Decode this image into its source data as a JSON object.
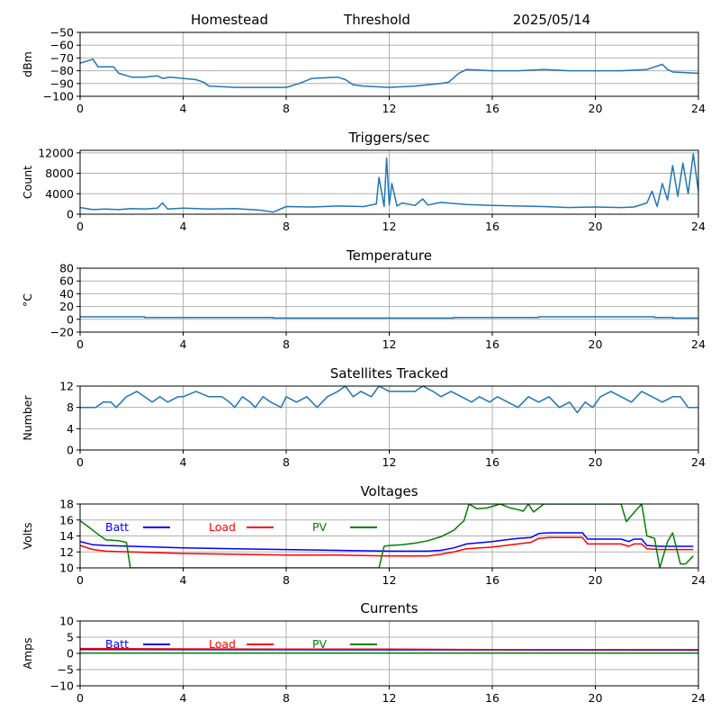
{
  "header": {
    "site": "Homestead",
    "label": "Threshold",
    "date": "2025/05/14"
  },
  "colors": {
    "series_default": "#1f77b4",
    "grid": "#b0b0b0",
    "batt": "#0000ff",
    "load": "#ff0000",
    "pv": "#008000"
  },
  "chart_data": [
    {
      "id": "signal",
      "type": "line",
      "title": "",
      "xlabel": "",
      "ylabel": "dBm",
      "xlim": [
        0,
        24
      ],
      "ylim": [
        -100,
        -50
      ],
      "xticks": [
        0,
        4,
        8,
        12,
        16,
        20,
        24
      ],
      "yticks": [
        -100,
        -90,
        -80,
        -70,
        -60,
        -50
      ],
      "grid": true,
      "series": [
        {
          "color": "#1f77b4",
          "x": [
            0,
            0.5,
            0.7,
            1.3,
            1.5,
            2.0,
            2.5,
            3.0,
            3.2,
            3.5,
            4.0,
            4.5,
            4.8,
            5.0,
            6.0,
            7.0,
            8.0,
            8.5,
            9.0,
            10.0,
            10.3,
            10.6,
            11.0,
            12.0,
            13.0,
            14.0,
            14.3,
            14.7,
            15.0,
            16.0,
            17.0,
            18.0,
            19.0,
            20.0,
            21.0,
            22.0,
            22.6,
            22.8,
            23.0,
            24.0
          ],
          "y": [
            -74,
            -71,
            -77,
            -77,
            -82,
            -85,
            -85,
            -84,
            -86,
            -85,
            -86,
            -87,
            -89,
            -92,
            -93,
            -93,
            -93,
            -90,
            -86,
            -85,
            -87,
            -91,
            -92,
            -93,
            -92,
            -90,
            -89,
            -82,
            -79,
            -80,
            -80,
            -79,
            -80,
            -80,
            -80,
            -79,
            -75,
            -79,
            -81,
            -82
          ]
        }
      ]
    },
    {
      "id": "triggers",
      "type": "line",
      "title": "Triggers/sec",
      "xlabel": "",
      "ylabel": "Count",
      "xlim": [
        0,
        24
      ],
      "ylim": [
        0,
        12500
      ],
      "xticks": [
        0,
        4,
        8,
        12,
        16,
        20,
        24
      ],
      "yticks": [
        0,
        4000,
        8000,
        12000
      ],
      "grid": true,
      "series": [
        {
          "color": "#1f77b4",
          "x": [
            0,
            0.5,
            1.0,
            1.5,
            2.0,
            2.5,
            3.0,
            3.2,
            3.4,
            4.0,
            5.0,
            6.0,
            7.0,
            7.5,
            8.0,
            9.0,
            10.0,
            11.0,
            11.5,
            11.6,
            11.8,
            11.9,
            12.0,
            12.1,
            12.3,
            12.5,
            13.0,
            13.3,
            13.5,
            14.0,
            15.0,
            16.0,
            17.0,
            18.0,
            19.0,
            20.0,
            21.0,
            21.5,
            22.0,
            22.2,
            22.4,
            22.6,
            22.8,
            23.0,
            23.2,
            23.4,
            23.6,
            23.8,
            24.0
          ],
          "y": [
            1300,
            900,
            1000,
            900,
            1100,
            1000,
            1200,
            2200,
            1000,
            1200,
            1000,
            1100,
            800,
            400,
            1500,
            1400,
            1600,
            1500,
            2000,
            7200,
            1500,
            11000,
            1800,
            6000,
            1600,
            2200,
            1700,
            3000,
            1800,
            2300,
            1900,
            1700,
            1600,
            1500,
            1300,
            1400,
            1300,
            1400,
            2200,
            4500,
            1500,
            6000,
            2800,
            9500,
            3500,
            10000,
            4000,
            11800,
            4500
          ]
        }
      ]
    },
    {
      "id": "temperature",
      "type": "line",
      "title": "Temperature",
      "xlabel": "",
      "ylabel": "°C",
      "xlim": [
        0,
        24
      ],
      "ylim": [
        -20,
        80
      ],
      "xticks": [
        0,
        4,
        8,
        12,
        16,
        20,
        24
      ],
      "yticks": [
        -20,
        0,
        20,
        40,
        60,
        80
      ],
      "grid": true,
      "series": [
        {
          "color": "#1f77b4",
          "x": [
            0,
            2.5,
            2.5,
            7.5,
            7.5,
            14.5,
            14.5,
            17.8,
            17.8,
            22.3,
            22.3,
            23.0,
            23.0,
            24.0
          ],
          "y": [
            4,
            4,
            3,
            3,
            2,
            2,
            3,
            3,
            4,
            4,
            3,
            3,
            2,
            2
          ]
        }
      ]
    },
    {
      "id": "satellites",
      "type": "line",
      "title": "Satellites Tracked",
      "xlabel": "",
      "ylabel": "Number",
      "xlim": [
        0,
        24
      ],
      "ylim": [
        0,
        12
      ],
      "xticks": [
        0,
        4,
        8,
        12,
        16,
        20,
        24
      ],
      "yticks": [
        0,
        4,
        8,
        12
      ],
      "grid": true,
      "series": [
        {
          "color": "#1f77b4",
          "x": [
            0,
            0.6,
            0.9,
            1.2,
            1.4,
            1.8,
            2.2,
            2.5,
            2.8,
            3.1,
            3.4,
            3.8,
            4.0,
            4.5,
            5.0,
            5.5,
            5.8,
            6.0,
            6.3,
            6.6,
            6.8,
            7.1,
            7.4,
            7.8,
            8.0,
            8.4,
            8.8,
            9.2,
            9.6,
            10.0,
            10.3,
            10.6,
            10.9,
            11.3,
            11.6,
            12.0,
            12.5,
            13.0,
            13.3,
            13.7,
            14.0,
            14.4,
            14.8,
            15.2,
            15.5,
            15.9,
            16.2,
            16.6,
            17.0,
            17.4,
            17.8,
            18.2,
            18.6,
            19.0,
            19.3,
            19.6,
            19.9,
            20.2,
            20.6,
            21.0,
            21.4,
            21.8,
            22.2,
            22.6,
            23.0,
            23.3,
            23.6,
            24.0
          ],
          "y": [
            8,
            8,
            9,
            9,
            8,
            10,
            11,
            10,
            9,
            10,
            9,
            10,
            10,
            11,
            10,
            10,
            9,
            8,
            10,
            9,
            8,
            10,
            9,
            8,
            10,
            9,
            10,
            8,
            10,
            11,
            12,
            10,
            11,
            10,
            12,
            11,
            11,
            11,
            12,
            11,
            10,
            11,
            10,
            9,
            10,
            9,
            10,
            9,
            8,
            10,
            9,
            10,
            8,
            9,
            7,
            9,
            8,
            10,
            11,
            10,
            9,
            11,
            10,
            9,
            10,
            10,
            8,
            8
          ]
        }
      ]
    },
    {
      "id": "voltages",
      "type": "line",
      "title": "Voltages",
      "xlabel": "",
      "ylabel": "Volts",
      "xlim": [
        0,
        24
      ],
      "ylim": [
        10,
        18
      ],
      "xticks": [
        0,
        4,
        8,
        12,
        16,
        20,
        24
      ],
      "yticks": [
        10,
        12,
        14,
        16,
        18
      ],
      "grid": true,
      "legend": "inline-top",
      "series": [
        {
          "name": "Batt",
          "color": "#0000ff",
          "x": [
            0,
            0.5,
            1.0,
            2.0,
            4.0,
            6.0,
            8.0,
            10.0,
            12.0,
            13.5,
            14.0,
            14.5,
            15.0,
            16.0,
            16.5,
            17.0,
            17.5,
            17.8,
            18.2,
            19.0,
            19.5,
            19.7,
            20.0,
            20.5,
            21.0,
            21.3,
            21.5,
            21.8,
            22.0,
            22.5,
            23.0,
            23.5,
            23.8
          ],
          "y": [
            13.3,
            12.9,
            12.8,
            12.7,
            12.5,
            12.4,
            12.3,
            12.2,
            12.1,
            12.1,
            12.2,
            12.5,
            13.0,
            13.3,
            13.5,
            13.7,
            13.8,
            14.3,
            14.4,
            14.4,
            14.4,
            13.6,
            13.6,
            13.6,
            13.6,
            13.3,
            13.6,
            13.6,
            12.8,
            12.7,
            12.7,
            12.7,
            12.7
          ]
        },
        {
          "name": "Load",
          "color": "#ff0000",
          "x": [
            0,
            0.5,
            1.0,
            2.0,
            4.0,
            6.0,
            8.0,
            10.0,
            12.0,
            13.5,
            14.0,
            14.5,
            15.0,
            16.0,
            16.5,
            17.0,
            17.5,
            17.8,
            18.2,
            19.0,
            19.5,
            19.7,
            20.0,
            20.5,
            21.0,
            21.3,
            21.5,
            21.8,
            22.0,
            22.5,
            23.0,
            23.5,
            23.8
          ],
          "y": [
            12.8,
            12.3,
            12.1,
            12.0,
            11.8,
            11.7,
            11.6,
            11.6,
            11.5,
            11.5,
            11.7,
            12.0,
            12.4,
            12.6,
            12.8,
            13.0,
            13.2,
            13.7,
            13.8,
            13.8,
            13.8,
            13.0,
            13.0,
            13.0,
            13.0,
            12.7,
            13.0,
            13.0,
            12.4,
            12.3,
            12.3,
            12.3,
            12.3
          ]
        },
        {
          "name": "PV",
          "color": "#008000",
          "x": [
            0,
            0.3,
            0.7,
            1.0,
            1.5,
            1.8,
            1.95,
            11.6,
            11.8,
            12.0,
            12.5,
            13.0,
            13.5,
            14.0,
            14.5,
            14.9,
            15.1,
            15.4,
            15.8,
            16.3,
            16.7,
            17.0,
            17.2,
            17.4,
            17.6,
            18.0,
            19.0,
            20.0,
            20.5,
            21.0,
            21.2,
            21.6,
            21.8,
            22.0,
            22.3,
            22.5,
            22.8,
            23.0,
            23.3,
            23.5,
            23.8
          ],
          "y": [
            15.9,
            15.2,
            14.2,
            13.5,
            13.4,
            13.2,
            10.0,
            10.0,
            12.7,
            12.8,
            12.9,
            13.1,
            13.4,
            13.9,
            14.7,
            15.9,
            18.0,
            17.4,
            17.5,
            18.0,
            17.5,
            17.3,
            17.1,
            18.0,
            17.0,
            18.0,
            18.0,
            18.0,
            18.0,
            18.0,
            15.8,
            17.3,
            18.0,
            14.0,
            13.7,
            10.0,
            13.3,
            14.4,
            10.5,
            10.5,
            11.5
          ]
        }
      ]
    },
    {
      "id": "currents",
      "type": "line",
      "title": "Currents",
      "xlabel": "",
      "ylabel": "Amps",
      "xlim": [
        0,
        24
      ],
      "ylim": [
        -10,
        10
      ],
      "xticks": [
        0,
        4,
        8,
        12,
        16,
        20,
        24
      ],
      "yticks": [
        -10,
        -5,
        0,
        5,
        10
      ],
      "grid": true,
      "legend": "inline-top",
      "series": [
        {
          "name": "Batt",
          "color": "#0000ff",
          "x": [
            0,
            24
          ],
          "y": [
            1.2,
            1.0
          ]
        },
        {
          "name": "Load",
          "color": "#ff0000",
          "x": [
            0,
            4,
            8,
            12,
            16,
            20,
            24
          ],
          "y": [
            1.5,
            1.4,
            1.3,
            1.3,
            1.2,
            1.2,
            1.2
          ]
        },
        {
          "name": "PV",
          "color": "#008000",
          "x": [
            0,
            24
          ],
          "y": [
            0.1,
            0.1
          ]
        }
      ]
    }
  ]
}
